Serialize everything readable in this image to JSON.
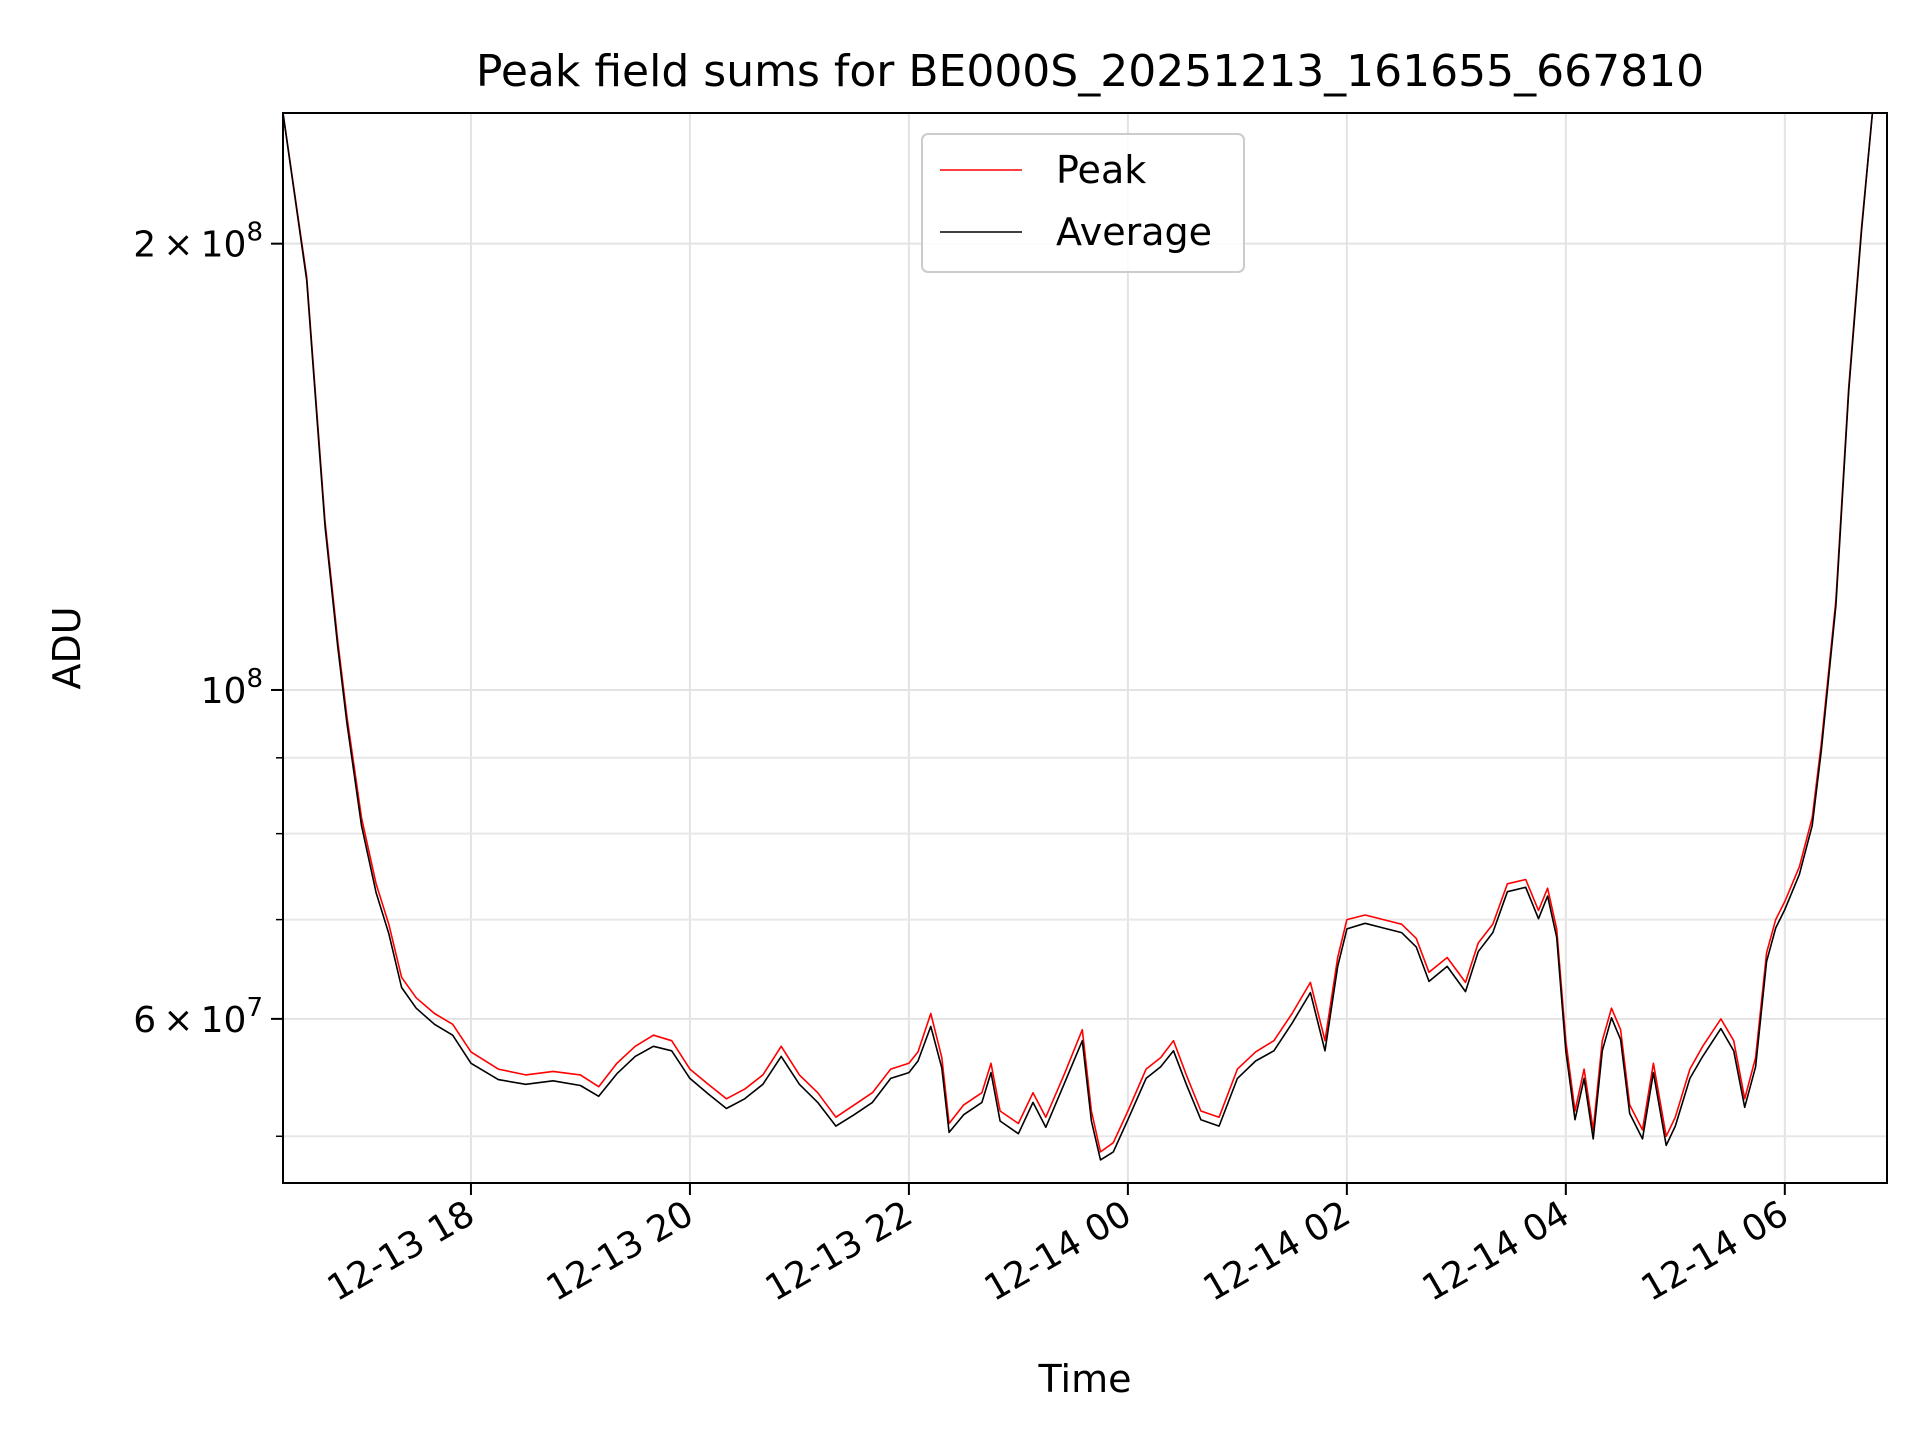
{
  "chart_data": {
    "type": "line",
    "title": "Peak field sums for BE000S_20251213_161655_667810",
    "xlabel": "Time",
    "ylabel": "ADU",
    "x_type": "datetime",
    "xlim": [
      "2025-12-13 16:17",
      "2025-12-14 06:56"
    ],
    "ylim": [
      46500000,
      245000000
    ],
    "yscale": "log",
    "grid": true,
    "legend_position": "top-center",
    "x_ticks": [
      {
        "value": "2025-12-13 18:00",
        "label": "12-13 18"
      },
      {
        "value": "2025-12-13 20:00",
        "label": "12-13 20"
      },
      {
        "value": "2025-12-13 22:00",
        "label": "12-13 22"
      },
      {
        "value": "2025-12-14 00:00",
        "label": "12-14 00"
      },
      {
        "value": "2025-12-14 02:00",
        "label": "12-14 02"
      },
      {
        "value": "2025-12-14 04:00",
        "label": "12-14 04"
      },
      {
        "value": "2025-12-14 06:00",
        "label": "12-14 06"
      }
    ],
    "y_ticks": [
      {
        "value": 60000000,
        "base": "6",
        "mult": "×",
        "pow_base": "10",
        "exp": "7"
      },
      {
        "value": 100000000,
        "base": "",
        "mult": "",
        "pow_base": "10",
        "exp": "8"
      },
      {
        "value": 200000000,
        "base": "2",
        "mult": "×",
        "pow_base": "10",
        "exp": "8"
      }
    ],
    "y_minor_ticks": [
      50000000,
      70000000,
      80000000,
      90000000
    ],
    "series": [
      {
        "name": "Peak",
        "color": "#ff0000",
        "points": [
          [
            "2025-12-13 16:17",
            245000000
          ],
          [
            "2025-12-13 16:30",
            190000000
          ],
          [
            "2025-12-13 16:40",
            130000000
          ],
          [
            "2025-12-13 16:47",
            108000000
          ],
          [
            "2025-12-13 16:52",
            96000000
          ],
          [
            "2025-12-13 17:00",
            82000000
          ],
          [
            "2025-12-13 17:08",
            74000000
          ],
          [
            "2025-12-13 17:15",
            69500000
          ],
          [
            "2025-12-13 17:22",
            64000000
          ],
          [
            "2025-12-13 17:30",
            62000000
          ],
          [
            "2025-12-13 17:40",
            60500000
          ],
          [
            "2025-12-13 17:50",
            59500000
          ],
          [
            "2025-12-13 18:00",
            57000000
          ],
          [
            "2025-12-13 18:15",
            55500000
          ],
          [
            "2025-12-13 18:30",
            55000000
          ],
          [
            "2025-12-13 18:45",
            55300000
          ],
          [
            "2025-12-13 19:00",
            55000000
          ],
          [
            "2025-12-13 19:10",
            54000000
          ],
          [
            "2025-12-13 19:20",
            56000000
          ],
          [
            "2025-12-13 19:30",
            57500000
          ],
          [
            "2025-12-13 19:40",
            58500000
          ],
          [
            "2025-12-13 19:50",
            58000000
          ],
          [
            "2025-12-13 20:00",
            55500000
          ],
          [
            "2025-12-13 20:10",
            54200000
          ],
          [
            "2025-12-13 20:20",
            53000000
          ],
          [
            "2025-12-13 20:30",
            53800000
          ],
          [
            "2025-12-13 20:40",
            55000000
          ],
          [
            "2025-12-13 20:50",
            57500000
          ],
          [
            "2025-12-13 21:00",
            55000000
          ],
          [
            "2025-12-13 21:10",
            53500000
          ],
          [
            "2025-12-13 21:20",
            51500000
          ],
          [
            "2025-12-13 21:30",
            52500000
          ],
          [
            "2025-12-13 21:40",
            53500000
          ],
          [
            "2025-12-13 21:50",
            55500000
          ],
          [
            "2025-12-13 22:00",
            56000000
          ],
          [
            "2025-12-13 22:05",
            57000000
          ],
          [
            "2025-12-13 22:12",
            60500000
          ],
          [
            "2025-12-13 22:18",
            56500000
          ],
          [
            "2025-12-13 22:22",
            51000000
          ],
          [
            "2025-12-13 22:30",
            52500000
          ],
          [
            "2025-12-13 22:40",
            53500000
          ],
          [
            "2025-12-13 22:45",
            56000000
          ],
          [
            "2025-12-13 22:50",
            52000000
          ],
          [
            "2025-12-13 23:00",
            51000000
          ],
          [
            "2025-12-13 23:08",
            53500000
          ],
          [
            "2025-12-13 23:15",
            51500000
          ],
          [
            "2025-12-13 23:25",
            55000000
          ],
          [
            "2025-12-13 23:35",
            59000000
          ],
          [
            "2025-12-13 23:40",
            52000000
          ],
          [
            "2025-12-13 23:45",
            48800000
          ],
          [
            "2025-12-13 23:52",
            49500000
          ],
          [
            "2025-12-14 00:00",
            52000000
          ],
          [
            "2025-12-14 00:10",
            55500000
          ],
          [
            "2025-12-14 00:18",
            56500000
          ],
          [
            "2025-12-14 00:25",
            58000000
          ],
          [
            "2025-12-14 00:32",
            55000000
          ],
          [
            "2025-12-14 00:40",
            52000000
          ],
          [
            "2025-12-14 00:50",
            51500000
          ],
          [
            "2025-12-14 01:00",
            55500000
          ],
          [
            "2025-12-14 01:10",
            57000000
          ],
          [
            "2025-12-14 01:20",
            58000000
          ],
          [
            "2025-12-14 01:30",
            60500000
          ],
          [
            "2025-12-14 01:40",
            63500000
          ],
          [
            "2025-12-14 01:48",
            58000000
          ],
          [
            "2025-12-14 01:55",
            66000000
          ],
          [
            "2025-12-14 02:00",
            70000000
          ],
          [
            "2025-12-14 02:10",
            70500000
          ],
          [
            "2025-12-14 02:20",
            70000000
          ],
          [
            "2025-12-14 02:30",
            69500000
          ],
          [
            "2025-12-14 02:38",
            68000000
          ],
          [
            "2025-12-14 02:45",
            64500000
          ],
          [
            "2025-12-14 02:55",
            66000000
          ],
          [
            "2025-12-14 03:05",
            63500000
          ],
          [
            "2025-12-14 03:12",
            67500000
          ],
          [
            "2025-12-14 03:20",
            69500000
          ],
          [
            "2025-12-14 03:28",
            74000000
          ],
          [
            "2025-12-14 03:38",
            74500000
          ],
          [
            "2025-12-14 03:45",
            71000000
          ],
          [
            "2025-12-14 03:50",
            73500000
          ],
          [
            "2025-12-14 03:55",
            69000000
          ],
          [
            "2025-12-14 04:00",
            58000000
          ],
          [
            "2025-12-14 04:05",
            52000000
          ],
          [
            "2025-12-14 04:10",
            55500000
          ],
          [
            "2025-12-14 04:15",
            50500000
          ],
          [
            "2025-12-14 04:20",
            58000000
          ],
          [
            "2025-12-14 04:25",
            61000000
          ],
          [
            "2025-12-14 04:30",
            59000000
          ],
          [
            "2025-12-14 04:35",
            52500000
          ],
          [
            "2025-12-14 04:42",
            50500000
          ],
          [
            "2025-12-14 04:48",
            56000000
          ],
          [
            "2025-12-14 04:55",
            50000000
          ],
          [
            "2025-12-14 05:00",
            51500000
          ],
          [
            "2025-12-14 05:08",
            55500000
          ],
          [
            "2025-12-14 05:15",
            57500000
          ],
          [
            "2025-12-14 05:25",
            60000000
          ],
          [
            "2025-12-14 05:32",
            58000000
          ],
          [
            "2025-12-14 05:38",
            53000000
          ],
          [
            "2025-12-14 05:44",
            56500000
          ],
          [
            "2025-12-14 05:50",
            66500000
          ],
          [
            "2025-12-14 05:55",
            70000000
          ],
          [
            "2025-12-14 06:00",
            72000000
          ],
          [
            "2025-12-14 06:08",
            76000000
          ],
          [
            "2025-12-14 06:15",
            82000000
          ],
          [
            "2025-12-14 06:20",
            92000000
          ],
          [
            "2025-12-14 06:28",
            115000000
          ],
          [
            "2025-12-14 06:35",
            160000000
          ],
          [
            "2025-12-14 06:42",
            205000000
          ],
          [
            "2025-12-14 06:48",
            245000000
          ],
          [
            "2025-12-14 06:56",
            245000000
          ]
        ]
      },
      {
        "name": "Average",
        "color": "#000000",
        "points": [
          [
            "2025-12-13 16:17",
            245000000
          ],
          [
            "2025-12-13 16:30",
            189000000
          ],
          [
            "2025-12-13 16:40",
            129000000
          ],
          [
            "2025-12-13 16:47",
            107000000
          ],
          [
            "2025-12-13 16:52",
            95000000
          ],
          [
            "2025-12-13 17:00",
            81000000
          ],
          [
            "2025-12-13 17:08",
            73000000
          ],
          [
            "2025-12-13 17:15",
            68500000
          ],
          [
            "2025-12-13 17:22",
            63000000
          ],
          [
            "2025-12-13 17:30",
            61000000
          ],
          [
            "2025-12-13 17:40",
            59500000
          ],
          [
            "2025-12-13 17:50",
            58500000
          ],
          [
            "2025-12-13 18:00",
            56000000
          ],
          [
            "2025-12-13 18:15",
            54600000
          ],
          [
            "2025-12-13 18:30",
            54200000
          ],
          [
            "2025-12-13 18:45",
            54500000
          ],
          [
            "2025-12-13 19:00",
            54100000
          ],
          [
            "2025-12-13 19:10",
            53200000
          ],
          [
            "2025-12-13 19:20",
            55100000
          ],
          [
            "2025-12-13 19:30",
            56600000
          ],
          [
            "2025-12-13 19:40",
            57500000
          ],
          [
            "2025-12-13 19:50",
            57100000
          ],
          [
            "2025-12-13 20:00",
            54700000
          ],
          [
            "2025-12-13 20:10",
            53400000
          ],
          [
            "2025-12-13 20:20",
            52200000
          ],
          [
            "2025-12-13 20:30",
            53000000
          ],
          [
            "2025-12-13 20:40",
            54200000
          ],
          [
            "2025-12-13 20:50",
            56600000
          ],
          [
            "2025-12-13 21:00",
            54200000
          ],
          [
            "2025-12-13 21:10",
            52700000
          ],
          [
            "2025-12-13 21:20",
            50800000
          ],
          [
            "2025-12-13 21:30",
            51700000
          ],
          [
            "2025-12-13 21:40",
            52700000
          ],
          [
            "2025-12-13 21:50",
            54700000
          ],
          [
            "2025-12-13 22:00",
            55200000
          ],
          [
            "2025-12-13 22:05",
            56200000
          ],
          [
            "2025-12-13 22:12",
            59300000
          ],
          [
            "2025-12-13 22:18",
            55600000
          ],
          [
            "2025-12-13 22:22",
            50300000
          ],
          [
            "2025-12-13 22:30",
            51700000
          ],
          [
            "2025-12-13 22:40",
            52700000
          ],
          [
            "2025-12-13 22:45",
            55200000
          ],
          [
            "2025-12-13 22:50",
            51200000
          ],
          [
            "2025-12-13 23:00",
            50200000
          ],
          [
            "2025-12-13 23:08",
            52700000
          ],
          [
            "2025-12-13 23:15",
            50700000
          ],
          [
            "2025-12-13 23:25",
            54200000
          ],
          [
            "2025-12-13 23:35",
            58000000
          ],
          [
            "2025-12-13 23:40",
            51200000
          ],
          [
            "2025-12-13 23:45",
            48200000
          ],
          [
            "2025-12-13 23:52",
            48800000
          ],
          [
            "2025-12-14 00:00",
            51300000
          ],
          [
            "2025-12-14 00:10",
            54700000
          ],
          [
            "2025-12-14 00:18",
            55700000
          ],
          [
            "2025-12-14 00:25",
            57100000
          ],
          [
            "2025-12-14 00:32",
            54200000
          ],
          [
            "2025-12-14 00:40",
            51300000
          ],
          [
            "2025-12-14 00:50",
            50800000
          ],
          [
            "2025-12-14 01:00",
            54700000
          ],
          [
            "2025-12-14 01:10",
            56200000
          ],
          [
            "2025-12-14 01:20",
            57100000
          ],
          [
            "2025-12-14 01:30",
            59600000
          ],
          [
            "2025-12-14 01:40",
            62500000
          ],
          [
            "2025-12-14 01:48",
            57100000
          ],
          [
            "2025-12-14 01:55",
            65100000
          ],
          [
            "2025-12-14 02:00",
            69000000
          ],
          [
            "2025-12-14 02:10",
            69600000
          ],
          [
            "2025-12-14 02:20",
            69100000
          ],
          [
            "2025-12-14 02:30",
            68600000
          ],
          [
            "2025-12-14 02:38",
            67100000
          ],
          [
            "2025-12-14 02:45",
            63600000
          ],
          [
            "2025-12-14 02:55",
            65100000
          ],
          [
            "2025-12-14 03:05",
            62600000
          ],
          [
            "2025-12-14 03:12",
            66600000
          ],
          [
            "2025-12-14 03:20",
            68600000
          ],
          [
            "2025-12-14 03:28",
            73100000
          ],
          [
            "2025-12-14 03:38",
            73600000
          ],
          [
            "2025-12-14 03:45",
            70100000
          ],
          [
            "2025-12-14 03:50",
            72600000
          ],
          [
            "2025-12-14 03:55",
            68100000
          ],
          [
            "2025-12-14 04:00",
            57100000
          ],
          [
            "2025-12-14 04:05",
            51300000
          ],
          [
            "2025-12-14 04:10",
            54700000
          ],
          [
            "2025-12-14 04:15",
            49800000
          ],
          [
            "2025-12-14 04:20",
            57100000
          ],
          [
            "2025-12-14 04:25",
            60100000
          ],
          [
            "2025-12-14 04:30",
            58100000
          ],
          [
            "2025-12-14 04:35",
            51800000
          ],
          [
            "2025-12-14 04:42",
            49800000
          ],
          [
            "2025-12-14 04:48",
            55200000
          ],
          [
            "2025-12-14 04:55",
            49300000
          ],
          [
            "2025-12-14 05:00",
            50800000
          ],
          [
            "2025-12-14 05:08",
            54700000
          ],
          [
            "2025-12-14 05:15",
            56600000
          ],
          [
            "2025-12-14 05:25",
            59100000
          ],
          [
            "2025-12-14 05:32",
            57100000
          ],
          [
            "2025-12-14 05:38",
            52300000
          ],
          [
            "2025-12-14 05:44",
            55700000
          ],
          [
            "2025-12-14 05:50",
            65600000
          ],
          [
            "2025-12-14 05:55",
            69100000
          ],
          [
            "2025-12-14 06:00",
            71100000
          ],
          [
            "2025-12-14 06:08",
            75100000
          ],
          [
            "2025-12-14 06:15",
            81000000
          ],
          [
            "2025-12-14 06:20",
            91000000
          ],
          [
            "2025-12-14 06:28",
            114000000
          ],
          [
            "2025-12-14 06:35",
            159000000
          ],
          [
            "2025-12-14 06:42",
            204000000
          ],
          [
            "2025-12-14 06:48",
            245000000
          ],
          [
            "2025-12-14 06:56",
            245000000
          ]
        ]
      }
    ]
  }
}
